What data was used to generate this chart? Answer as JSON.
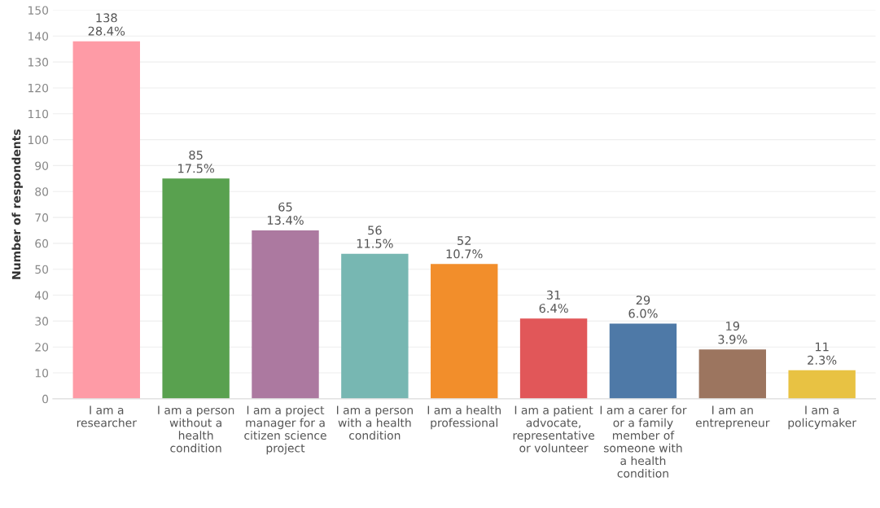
{
  "chart_data": {
    "type": "bar",
    "ylabel": "Number of respondents",
    "categories": [
      "I am a\nresearcher",
      "I am a person\nwithout a\nhealth\ncondition",
      "I am a project\nmanager for a\ncitizen science\nproject",
      "I am a person\nwith a health\ncondition",
      "I am a health\nprofessional",
      "I am a patient\nadvocate,\nrepresentative\nor volunteer",
      "I am a carer for\nor a family\nmember of\nsomeone with\na health\ncondition",
      "I am an\nentrepreneur",
      "I am a\npolicymaker"
    ],
    "values": [
      138,
      85,
      65,
      56,
      52,
      31,
      29,
      19,
      11
    ],
    "colors": [
      "#fe9ba6",
      "#59a14f",
      "#ac79a0",
      "#77b7b2",
      "#f28e2b",
      "#e15759",
      "#4e79a7",
      "#9c755f",
      "#e8c243"
    ],
    "value_labels": [
      "138\n28.4%",
      "85\n17.5%",
      "65\n13.4%",
      "56\n11.5%",
      "52\n10.7%",
      "31\n6.4%",
      "29\n6.0%",
      "19\n3.9%",
      "11\n2.3%"
    ],
    "ylim": [
      0,
      150
    ],
    "yticks": [
      0,
      10,
      20,
      30,
      40,
      50,
      60,
      70,
      80,
      90,
      100,
      110,
      120,
      130,
      140,
      150
    ],
    "grid": "y"
  }
}
